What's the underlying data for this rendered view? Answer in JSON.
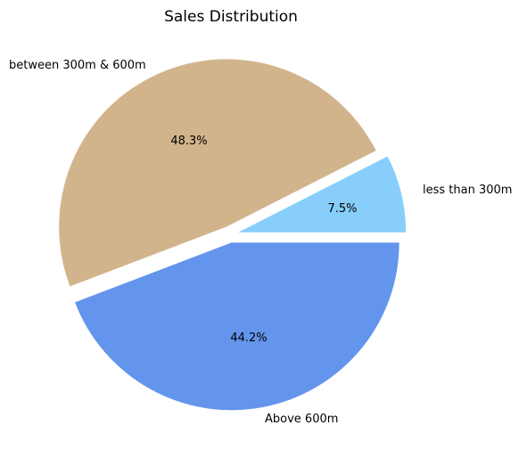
{
  "chart_data": {
    "type": "pie",
    "title": "Sales Distribution",
    "slices": [
      {
        "label": "less than 300m",
        "value": 7.5,
        "pct_label": "7.5%",
        "color": "#87CEFA",
        "exploded": true
      },
      {
        "label": "between 300m & 600m",
        "value": 48.3,
        "pct_label": "48.3%",
        "color": "#D2B48C",
        "exploded": true
      },
      {
        "label": "Above 600m",
        "value": 44.2,
        "pct_label": "44.2%",
        "color": "#6495ED",
        "exploded": true
      }
    ],
    "start_angle_deg": 0,
    "direction": "counterclockwise",
    "legend": "none"
  }
}
